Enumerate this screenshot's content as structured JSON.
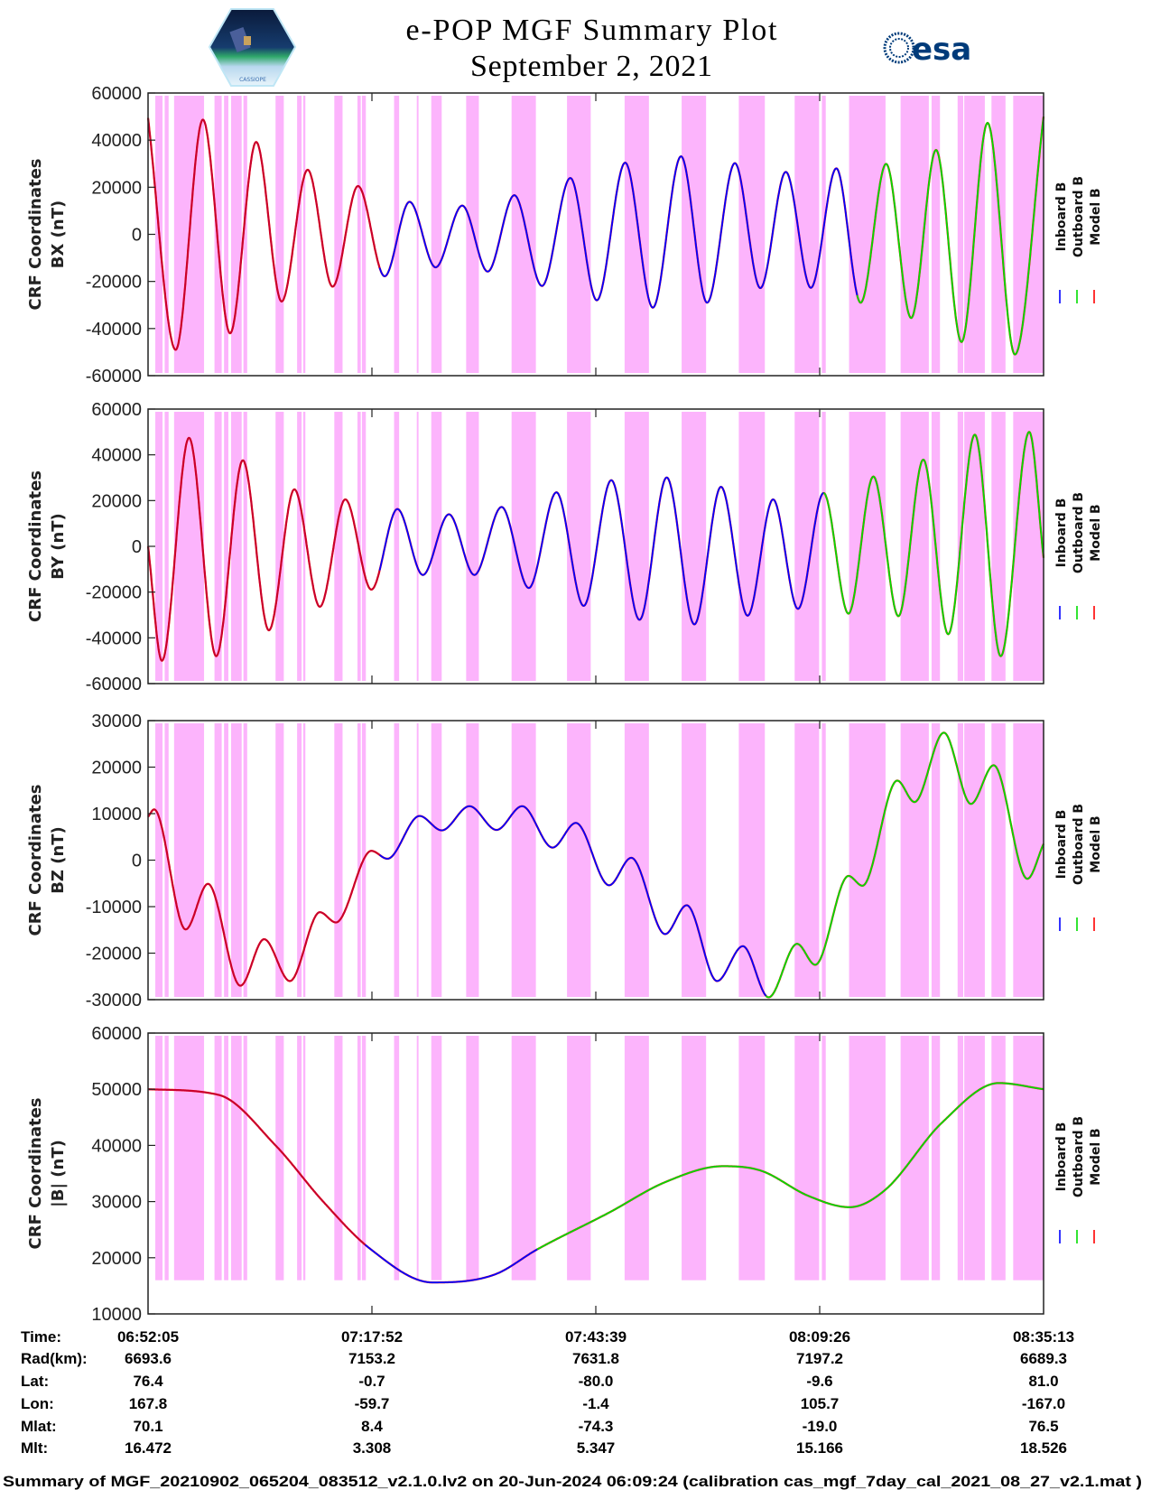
{
  "header": {
    "title": "e-POP MGF Summary Plot",
    "date": "September 2, 2021",
    "left_logo_text": "CASSIOPE",
    "right_logo_text": "esa"
  },
  "colors": {
    "inboard": "#0000ff",
    "outboard": "#00dd00",
    "model": "#ff0000",
    "model_over_inboard": "#c4002e",
    "shading": "#fcb4fc",
    "axis": "#222222"
  },
  "time_axis": {
    "span_seconds": 6188,
    "tick_seconds": [
      0,
      1547,
      3094,
      4641,
      6188
    ]
  },
  "shading_intervals_s": [
    [
      50,
      100
    ],
    [
      115,
      142
    ],
    [
      180,
      387
    ],
    [
      459,
      509
    ],
    [
      525,
      555
    ],
    [
      574,
      647
    ],
    [
      659,
      685
    ],
    [
      881,
      938
    ],
    [
      1030,
      1061
    ],
    [
      1072,
      1087
    ],
    [
      1287,
      1344
    ],
    [
      1447,
      1470
    ],
    [
      1478,
      1505
    ],
    [
      1700,
      1735
    ],
    [
      1857,
      1869
    ],
    [
      1957,
      2029
    ],
    [
      2198,
      2286
    ],
    [
      2512,
      2680
    ],
    [
      2895,
      3059
    ],
    [
      3293,
      3461
    ],
    [
      3687,
      3856
    ],
    [
      4082,
      4262
    ],
    [
      4468,
      4637
    ],
    [
      4656,
      4683
    ],
    [
      4844,
      5096
    ],
    [
      5200,
      5395
    ],
    [
      5414,
      5472
    ],
    [
      5594,
      5633
    ],
    [
      5640,
      5782
    ],
    [
      5828,
      5925
    ],
    [
      5978,
      6188
    ]
  ],
  "legend": [
    "Inboard B",
    "Outboard B",
    "Model B"
  ],
  "chart_data": [
    {
      "type": "line",
      "ylabel": [
        "CRF Coordinates",
        "BX (nT)"
      ],
      "ylim": [
        -60000,
        60000
      ],
      "yticks": [
        "60000",
        "40000",
        "20000",
        "0",
        "-20000",
        "-40000",
        "-60000"
      ],
      "ytick_values": [
        60000,
        40000,
        20000,
        0,
        -20000,
        -40000,
        -60000
      ],
      "legend_placement": "right",
      "points": [
        [
          0,
          49400
        ],
        [
          191,
          -49000
        ],
        [
          379,
          48700
        ],
        [
          567,
          -42000
        ],
        [
          747,
          39200
        ],
        [
          923,
          -28500
        ],
        [
          1103,
          27400
        ],
        [
          1275,
          -22200
        ],
        [
          1451,
          20500
        ],
        [
          1635,
          -17800
        ],
        [
          1807,
          13800
        ],
        [
          1987,
          -14000
        ],
        [
          2171,
          12200
        ],
        [
          2347,
          -15800
        ],
        [
          2531,
          16600
        ],
        [
          2722,
          -21900
        ],
        [
          2918,
          23900
        ],
        [
          3101,
          -28000
        ],
        [
          3297,
          30400
        ],
        [
          3488,
          -31100
        ],
        [
          3683,
          33100
        ],
        [
          3863,
          -29000
        ],
        [
          4055,
          30200
        ],
        [
          4231,
          -22800
        ],
        [
          4407,
          26500
        ],
        [
          4580,
          -22700
        ],
        [
          4756,
          28000
        ],
        [
          4924,
          -29000
        ],
        [
          5100,
          29900
        ],
        [
          5273,
          -35500
        ],
        [
          5445,
          35800
        ],
        [
          5621,
          -45700
        ],
        [
          5801,
          47300
        ],
        [
          5990,
          -51000
        ],
        [
          6188,
          50000
        ]
      ],
      "visible_segments": [
        {
          "until": 1600,
          "series": "model_over_inboard"
        },
        {
          "until": 4900,
          "series": "inboard"
        },
        {
          "until": 6188,
          "series": "outboard"
        }
      ]
    },
    {
      "type": "line",
      "ylabel": [
        "CRF Coordinates",
        "BY (nT)"
      ],
      "ylim": [
        -60000,
        60000
      ],
      "yticks": [
        "60000",
        "40000",
        "20000",
        "0",
        "-20000",
        "-40000",
        "-60000"
      ],
      "ytick_values": [
        60000,
        40000,
        20000,
        0,
        -20000,
        -40000,
        -60000
      ],
      "legend_placement": "right",
      "points": [
        [
          0,
          0
        ],
        [
          96,
          -50000
        ],
        [
          283,
          47400
        ],
        [
          471,
          -48000
        ],
        [
          655,
          37600
        ],
        [
          835,
          -36700
        ],
        [
          1011,
          24900
        ],
        [
          1187,
          -26400
        ],
        [
          1363,
          20500
        ],
        [
          1543,
          -18900
        ],
        [
          1723,
          16300
        ],
        [
          1899,
          -12500
        ],
        [
          2079,
          14000
        ],
        [
          2255,
          -12500
        ],
        [
          2443,
          17200
        ],
        [
          2631,
          -18200
        ],
        [
          2822,
          23600
        ],
        [
          3010,
          -26000
        ],
        [
          3201,
          28900
        ],
        [
          3396,
          -32100
        ],
        [
          3584,
          30100
        ],
        [
          3775,
          -34100
        ],
        [
          3959,
          26000
        ],
        [
          4143,
          -30300
        ],
        [
          4319,
          20500
        ],
        [
          4491,
          -27300
        ],
        [
          4668,
          23300
        ],
        [
          4840,
          -29400
        ],
        [
          5012,
          30500
        ],
        [
          5185,
          -30500
        ],
        [
          5357,
          37900
        ],
        [
          5529,
          -38400
        ],
        [
          5713,
          48800
        ],
        [
          5892,
          -48000
        ],
        [
          6089,
          50000
        ],
        [
          6188,
          -5000
        ]
      ],
      "visible_segments": [
        {
          "until": 1600,
          "series": "model_over_inboard"
        },
        {
          "until": 4668,
          "series": "inboard"
        },
        {
          "until": 6188,
          "series": "outboard"
        }
      ]
    },
    {
      "type": "line",
      "ylabel": [
        "CRF Coordinates",
        "BZ (nT)"
      ],
      "ylim": [
        -30000,
        30000
      ],
      "yticks": [
        "30000",
        "20000",
        "10000",
        "0",
        "-10000",
        "-20000",
        "-30000"
      ],
      "ytick_values": [
        30000,
        20000,
        10000,
        0,
        -10000,
        -20000,
        -30000
      ],
      "legend_placement": "right",
      "points": [
        [
          0,
          9300
        ],
        [
          42,
          10900
        ],
        [
          260,
          -14900
        ],
        [
          414,
          -5100
        ],
        [
          638,
          -27000
        ],
        [
          802,
          -17000
        ],
        [
          980,
          -26000
        ],
        [
          1187,
          -11200
        ],
        [
          1298,
          -13400
        ],
        [
          1543,
          2000
        ],
        [
          1654,
          300
        ],
        [
          1876,
          9500
        ],
        [
          2029,
          6400
        ],
        [
          2221,
          11600
        ],
        [
          2408,
          6500
        ],
        [
          2585,
          11600
        ],
        [
          2795,
          2700
        ],
        [
          2956,
          8000
        ],
        [
          3186,
          -5400
        ],
        [
          3339,
          500
        ],
        [
          3573,
          -15900
        ],
        [
          3722,
          -9700
        ],
        [
          3932,
          -26000
        ],
        [
          4110,
          -18500
        ],
        [
          4288,
          -29500
        ],
        [
          4485,
          -18000
        ],
        [
          4610,
          -22500
        ],
        [
          4840,
          -3400
        ],
        [
          4936,
          -5500
        ],
        [
          5177,
          17100
        ],
        [
          5296,
          12500
        ],
        [
          5499,
          27400
        ],
        [
          5686,
          12100
        ],
        [
          5843,
          20400
        ],
        [
          6076,
          -4000
        ],
        [
          6188,
          3500
        ]
      ],
      "visible_segments": [
        {
          "until": 1600,
          "series": "model_over_inboard"
        },
        {
          "until": 4270,
          "series": "inboard"
        },
        {
          "until": 6188,
          "series": "outboard"
        }
      ]
    },
    {
      "type": "line",
      "ylabel": [
        "CRF Coordinates",
        "|B| (nT)"
      ],
      "ylim": [
        10000,
        60000
      ],
      "yticks": [
        "60000",
        "50000",
        "40000",
        "30000",
        "20000",
        "10000"
      ],
      "ytick_values": [
        60000,
        50000,
        40000,
        30000,
        20000,
        10000
      ],
      "legend_placement": "right",
      "points": [
        [
          0,
          50000
        ],
        [
          487,
          49000
        ],
        [
          881,
          40000
        ],
        [
          1210,
          30000
        ],
        [
          1539,
          21500
        ],
        [
          1966,
          15600
        ],
        [
          2394,
          17000
        ],
        [
          2690,
          21500
        ],
        [
          3183,
          28000
        ],
        [
          3577,
          33500
        ],
        [
          3972,
          36300
        ],
        [
          4235,
          35500
        ],
        [
          4564,
          31000
        ],
        [
          4847,
          29000
        ],
        [
          5090,
          32000
        ],
        [
          5484,
          44000
        ],
        [
          5879,
          51100
        ],
        [
          6188,
          50000
        ]
      ],
      "visible_segments": [
        {
          "until": 1500,
          "series": "model_over_inboard"
        },
        {
          "until": 2690,
          "series": "inboard"
        },
        {
          "until": 6188,
          "series": "outboard"
        }
      ]
    }
  ],
  "ephemeris": {
    "labels": [
      "Time:",
      "Rad(km):",
      "Lat:",
      "Lon:",
      "Mlat:",
      "Mlt:"
    ],
    "columns": [
      [
        "06:52:05",
        "6693.6",
        "76.4",
        "167.8",
        "70.1",
        "16.472"
      ],
      [
        "07:17:52",
        "7153.2",
        "-0.7",
        "-59.7",
        "8.4",
        "3.308"
      ],
      [
        "07:43:39",
        "7631.8",
        "-80.0",
        "-1.4",
        "-74.3",
        "5.347"
      ],
      [
        "08:09:26",
        "7197.2",
        "-9.6",
        "105.7",
        "-19.0",
        "15.166"
      ],
      [
        "08:35:13",
        "6689.3",
        "81.0",
        "-167.0",
        "76.5",
        "18.526"
      ]
    ]
  },
  "footer": "Summary of MGF_20210902_065204_083512_v2.1.0.lv2 on 20-Jun-2024 06:09:24 (calibration cas_mgf_7day_cal_2021_08_27_v2.1.mat )"
}
